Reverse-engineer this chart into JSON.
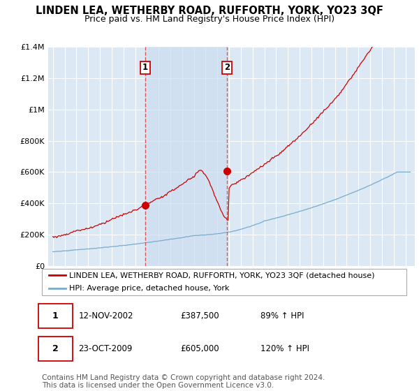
{
  "title": "LINDEN LEA, WETHERBY ROAD, RUFFORTH, YORK, YO23 3QF",
  "subtitle": "Price paid vs. HM Land Registry's House Price Index (HPI)",
  "title_fontsize": 10.5,
  "subtitle_fontsize": 9,
  "background_color": "#ffffff",
  "plot_bg_color": "#dce9f5",
  "grid_color": "#ffffff",
  "red_color": "#cc0000",
  "blue_color": "#7aaacc",
  "shade_color": "#ccddf0",
  "dashed_color": "#dd4444",
  "ylim": [
    0,
    1400000
  ],
  "yticks": [
    0,
    200000,
    400000,
    600000,
    800000,
    1000000,
    1200000,
    1400000
  ],
  "ytick_labels": [
    "£0",
    "£200K",
    "£400K",
    "£600K",
    "£800K",
    "£1M",
    "£1.2M",
    "£1.4M"
  ],
  "purchase1_date": 2002.87,
  "purchase1_value": 387500,
  "purchase1_label": "1",
  "purchase2_date": 2009.81,
  "purchase2_value": 605000,
  "purchase2_label": "2",
  "legend_line1": "LINDEN LEA, WETHERBY ROAD, RUFFORTH, YORK, YO23 3QF (detached house)",
  "legend_line2": "HPI: Average price, detached house, York",
  "table_row1": [
    "1",
    "12-NOV-2002",
    "£387,500",
    "89% ↑ HPI"
  ],
  "table_row2": [
    "2",
    "23-OCT-2009",
    "£605,000",
    "120% ↑ HPI"
  ],
  "footnote": "Contains HM Land Registry data © Crown copyright and database right 2024.\nThis data is licensed under the Open Government Licence v3.0.",
  "footnote_fontsize": 7.5,
  "legend_fontsize": 8,
  "table_fontsize": 8.5
}
